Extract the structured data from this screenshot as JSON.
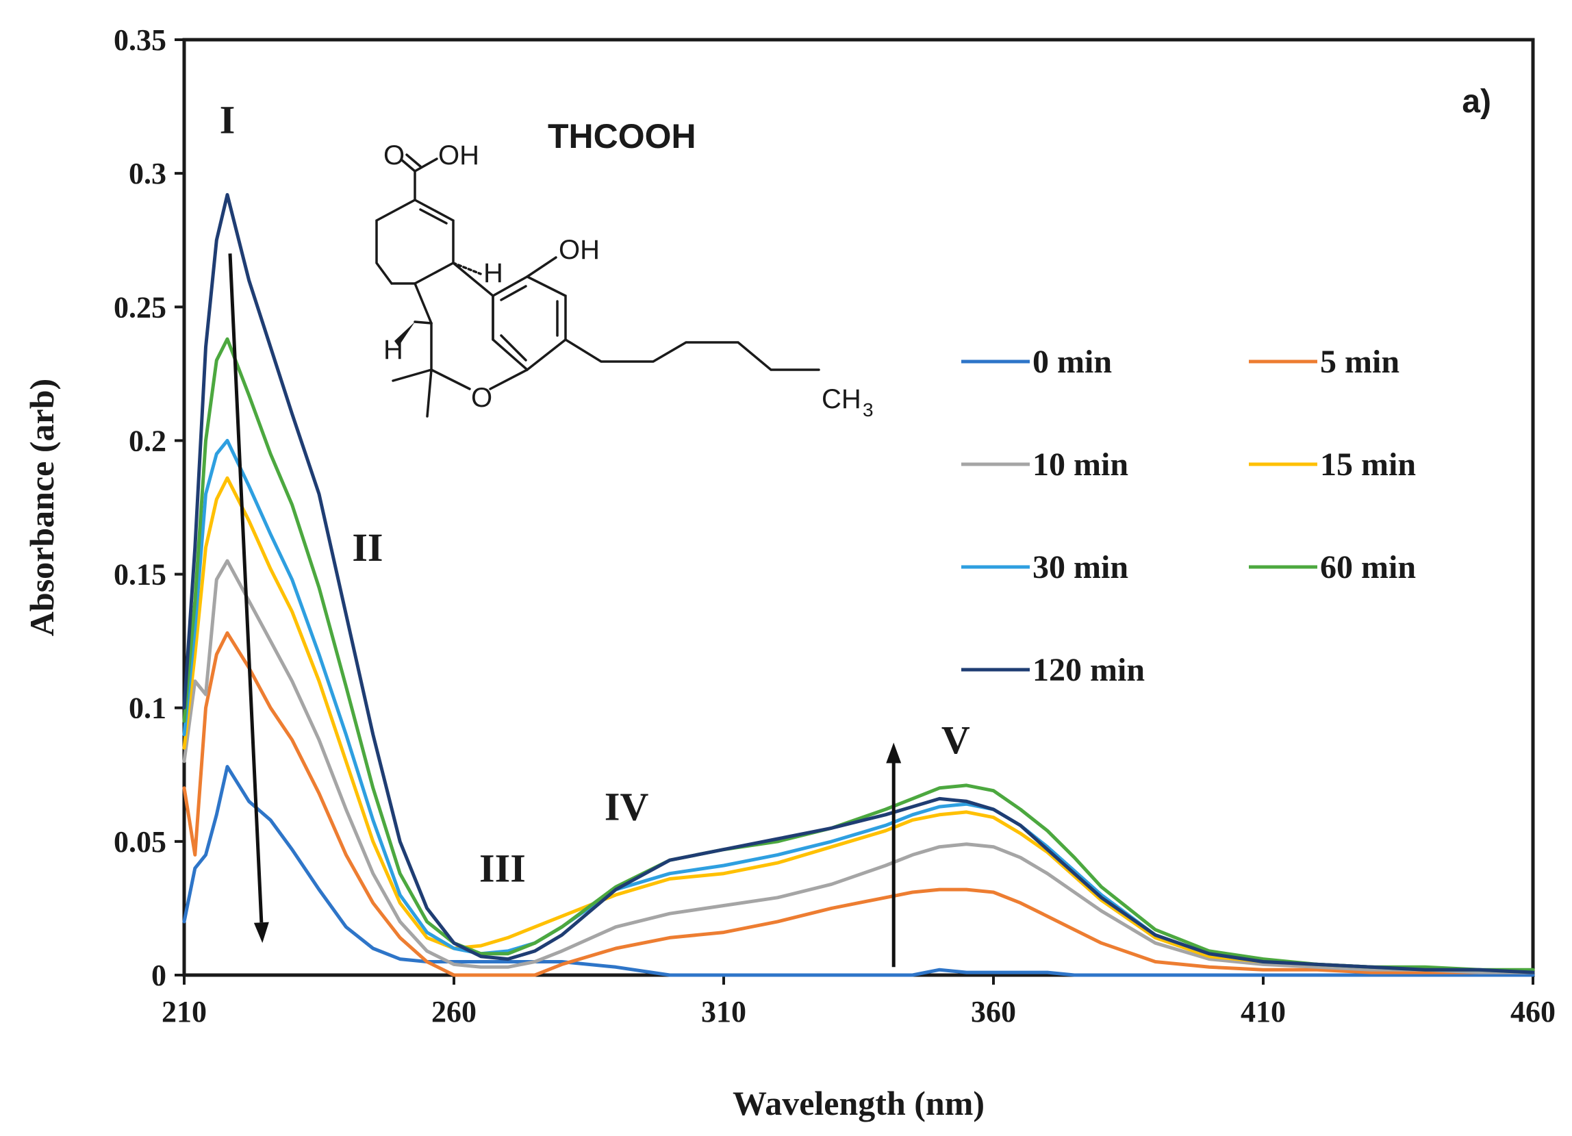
{
  "chart_data": {
    "type": "line",
    "panel_label": "a)",
    "xlabel": "Wavelength (nm)",
    "ylabel": "Absorbance (arb)",
    "xlim": [
      210,
      460
    ],
    "ylim": [
      0,
      0.35
    ],
    "x_ticks": [
      "210",
      "260",
      "310",
      "360",
      "410",
      "460"
    ],
    "y_ticks": [
      "0",
      "0.05",
      "0.1",
      "0.15",
      "0.2",
      "0.25",
      "0.3",
      "0.35"
    ],
    "x": [
      210,
      212,
      214,
      216,
      218,
      222,
      226,
      230,
      235,
      240,
      245,
      250,
      255,
      260,
      265,
      270,
      275,
      280,
      290,
      300,
      310,
      320,
      330,
      340,
      345,
      350,
      355,
      360,
      365,
      370,
      375,
      380,
      390,
      400,
      410,
      420,
      430,
      440,
      450,
      460
    ],
    "series": [
      {
        "name": "0 min",
        "color": "#2E75C8",
        "values": [
          0.02,
          0.04,
          0.045,
          0.06,
          0.078,
          0.065,
          0.058,
          0.047,
          0.032,
          0.018,
          0.01,
          0.006,
          0.005,
          0.005,
          0.005,
          0.005,
          0.005,
          0.005,
          0.003,
          0.0,
          0.0,
          0.0,
          0.0,
          0.0,
          0.0,
          0.002,
          0.001,
          0.001,
          0.001,
          0.001,
          0.0,
          0.0,
          0.0,
          0.0,
          0.0,
          0.0,
          0.0,
          0.0,
          0.0,
          0.0
        ]
      },
      {
        "name": "5 min",
        "color": "#ED7D31",
        "values": [
          0.07,
          0.045,
          0.1,
          0.12,
          0.128,
          0.115,
          0.1,
          0.088,
          0.068,
          0.045,
          0.027,
          0.014,
          0.005,
          0.0,
          0.0,
          0.0,
          0.0,
          0.004,
          0.01,
          0.014,
          0.016,
          0.02,
          0.025,
          0.029,
          0.031,
          0.032,
          0.032,
          0.031,
          0.027,
          0.022,
          0.017,
          0.012,
          0.005,
          0.003,
          0.002,
          0.002,
          0.001,
          0.001,
          0.001,
          0.001
        ]
      },
      {
        "name": "10 min",
        "color": "#A5A5A5",
        "values": [
          0.08,
          0.11,
          0.105,
          0.148,
          0.155,
          0.14,
          0.125,
          0.11,
          0.088,
          0.062,
          0.038,
          0.02,
          0.009,
          0.004,
          0.003,
          0.003,
          0.005,
          0.009,
          0.018,
          0.023,
          0.026,
          0.029,
          0.034,
          0.041,
          0.045,
          0.048,
          0.049,
          0.048,
          0.044,
          0.038,
          0.031,
          0.024,
          0.012,
          0.006,
          0.004,
          0.003,
          0.002,
          0.002,
          0.001,
          0.001
        ]
      },
      {
        "name": "15 min",
        "color": "#FFC000",
        "values": [
          0.085,
          0.12,
          0.16,
          0.178,
          0.186,
          0.17,
          0.152,
          0.136,
          0.11,
          0.08,
          0.05,
          0.027,
          0.014,
          0.01,
          0.011,
          0.014,
          0.018,
          0.022,
          0.03,
          0.036,
          0.038,
          0.042,
          0.048,
          0.054,
          0.058,
          0.06,
          0.061,
          0.059,
          0.053,
          0.046,
          0.037,
          0.028,
          0.014,
          0.007,
          0.005,
          0.004,
          0.003,
          0.002,
          0.002,
          0.001
        ]
      },
      {
        "name": "30 min",
        "color": "#2E9FE0",
        "values": [
          0.09,
          0.13,
          0.18,
          0.195,
          0.2,
          0.183,
          0.165,
          0.148,
          0.12,
          0.09,
          0.058,
          0.03,
          0.016,
          0.01,
          0.008,
          0.009,
          0.012,
          0.018,
          0.032,
          0.038,
          0.041,
          0.045,
          0.05,
          0.056,
          0.06,
          0.063,
          0.064,
          0.062,
          0.056,
          0.048,
          0.039,
          0.03,
          0.015,
          0.008,
          0.005,
          0.004,
          0.003,
          0.002,
          0.002,
          0.001
        ]
      },
      {
        "name": "60 min",
        "color": "#4CA83F",
        "values": [
          0.095,
          0.14,
          0.2,
          0.23,
          0.238,
          0.217,
          0.195,
          0.176,
          0.145,
          0.108,
          0.07,
          0.038,
          0.02,
          0.012,
          0.008,
          0.008,
          0.012,
          0.018,
          0.033,
          0.043,
          0.047,
          0.05,
          0.055,
          0.062,
          0.066,
          0.07,
          0.071,
          0.069,
          0.062,
          0.054,
          0.044,
          0.033,
          0.017,
          0.009,
          0.006,
          0.004,
          0.003,
          0.003,
          0.002,
          0.002
        ]
      },
      {
        "name": "120 min",
        "color": "#1F3D73",
        "values": [
          0.1,
          0.16,
          0.235,
          0.275,
          0.292,
          0.26,
          0.235,
          0.21,
          0.18,
          0.135,
          0.09,
          0.05,
          0.025,
          0.012,
          0.007,
          0.006,
          0.009,
          0.015,
          0.032,
          0.043,
          0.047,
          0.051,
          0.055,
          0.06,
          0.063,
          0.066,
          0.065,
          0.062,
          0.056,
          0.047,
          0.038,
          0.029,
          0.015,
          0.008,
          0.005,
          0.004,
          0.003,
          0.002,
          0.002,
          0.001
        ]
      }
    ],
    "band_labels": [
      {
        "text": "I",
        "x": 218,
        "y": 0.315
      },
      {
        "text": "II",
        "x": 244,
        "y": 0.155
      },
      {
        "text": "III",
        "x": 269,
        "y": 0.035
      },
      {
        "text": "IV",
        "x": 292,
        "y": 0.058
      },
      {
        "text": "V",
        "x": 353,
        "y": 0.083
      }
    ],
    "arrows": [
      {
        "from": [
          218.5,
          0.27
        ],
        "to": [
          224.5,
          0.012
        ]
      },
      {
        "from": [
          341.5,
          0.003
        ],
        "to": [
          341.5,
          0.087
        ]
      }
    ],
    "inset": {
      "title": "THCOOH",
      "atoms": {
        "o_carbonyl": "O",
        "oh_acid": "OH",
        "oh_phenol": "OH",
        "h_top": "H",
        "h_left": "H",
        "o_ring": "O",
        "ch3": "CH",
        "ch3_sub": "3"
      }
    }
  }
}
